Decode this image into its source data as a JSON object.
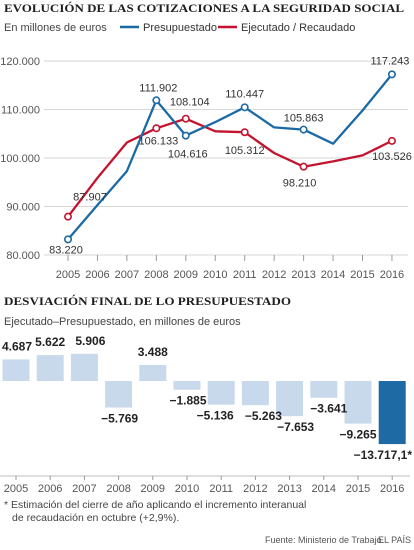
{
  "chart_data": [
    {
      "type": "line",
      "title": "EVOLUCIÓN DE LAS COTIZACIONES A LA SEGURIDAD SOCIAL",
      "subtitle": "En millones de euros",
      "x": [
        "2005",
        "2006",
        "2007",
        "2008",
        "2009",
        "2010",
        "2011",
        "2012",
        "2013",
        "2014",
        "2015",
        "2016"
      ],
      "ylim": [
        80000,
        120000
      ],
      "ytick_values": [
        80000,
        90000,
        100000,
        110000,
        120000
      ],
      "ytick_labels": [
        "80.000",
        "90.000",
        "100.000",
        "110.000",
        "120.000"
      ],
      "grid": true,
      "legend": "top",
      "series": [
        {
          "name": "Presupuestado",
          "color": "#1c6aa3",
          "values": [
            83220,
            90300,
            97300,
            111902,
            104616,
            107400,
            110447,
            106300,
            105863,
            102950,
            109800,
            117243
          ],
          "labels": [
            "83.220",
            "",
            "",
            "111.902",
            "104.616",
            "",
            "110.447",
            "",
            "105.863",
            "",
            "",
            "117.243"
          ]
        },
        {
          "name": "Ejecutado / Recaudado",
          "color": "#c3132f",
          "values": [
            87907,
            95922,
            103206,
            106133,
            108104,
            105515,
            105312,
            101037,
            98210,
            99309,
            100535,
            103526
          ],
          "labels": [
            "87.907",
            "",
            "",
            "106.133",
            "108.104",
            "",
            "105.312",
            "",
            "98.210",
            "",
            "",
            "103.526"
          ]
        }
      ]
    },
    {
      "type": "bar",
      "title": "DESVIACIÓN FINAL DE LO PRESUPUESTADO",
      "subtitle": "Ejecutado–Presupuestado, en millones de euros",
      "categories": [
        "2005",
        "2006",
        "2007",
        "2008",
        "2009",
        "2010",
        "2011",
        "2012",
        "2013",
        "2014",
        "2015",
        "2016"
      ],
      "values": [
        4687,
        5622,
        5906,
        -5769,
        3488,
        -1885,
        -5136,
        -5263,
        -7653,
        -3641,
        -9265,
        -13717.1
      ],
      "labels": [
        "4.687",
        "5.622",
        "5.906",
        "−5.769",
        "3.488",
        "−1.885",
        "−5.136",
        "−5.263",
        "−7.653",
        "−3.641",
        "−9.265",
        "−13.717,1*"
      ],
      "colors": {
        "bar": "#c8d9ec",
        "highlight": "#1d6aa5"
      },
      "highlight_index": 11
    }
  ],
  "footnote_lines": [
    "* Estimación del cierre de año aplicando el incremento interanual",
    "de recaudación en octubre (+2,9%)."
  ],
  "source": "Fuente: Ministerio de Trabajo.",
  "brand": "EL PAÍS"
}
